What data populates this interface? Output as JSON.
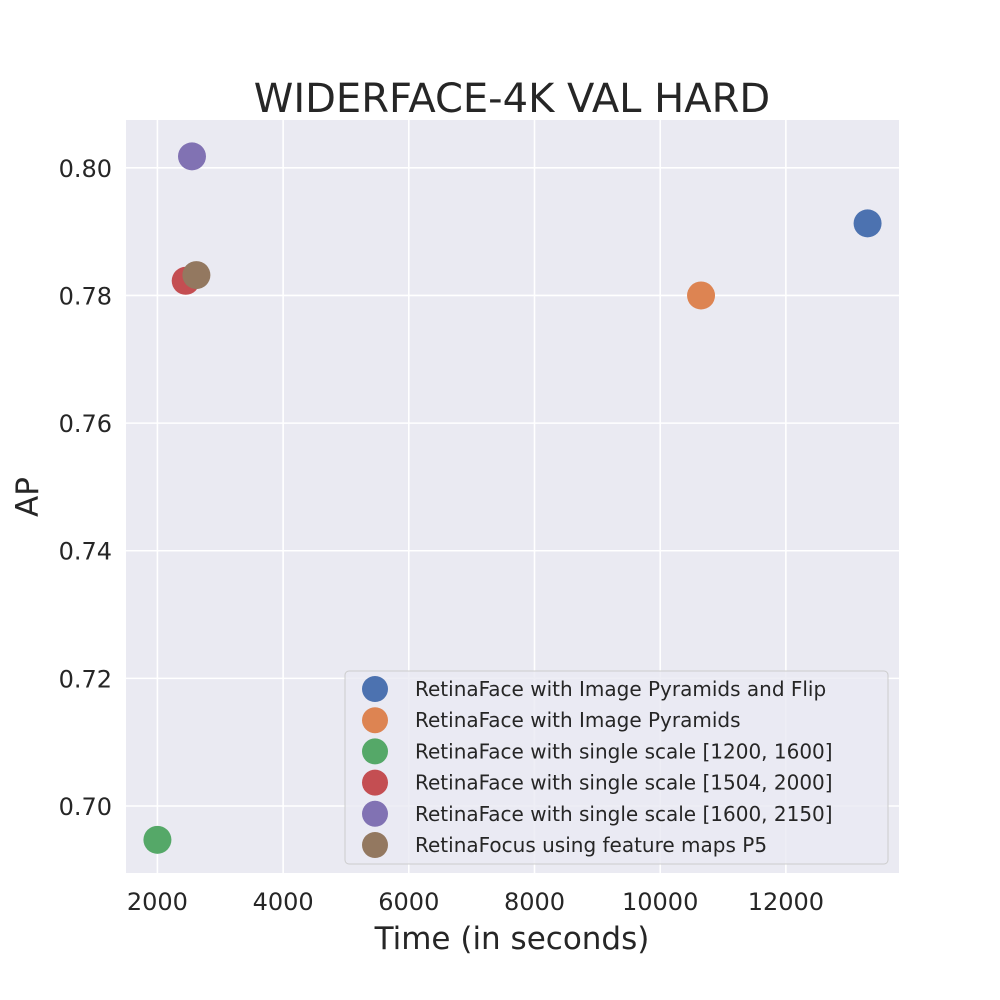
{
  "chart_data": {
    "type": "scatter",
    "title": "WIDERFACE-4K VAL HARD",
    "xlabel": "Time (in seconds)",
    "ylabel": "AP",
    "xlim": [
      1500,
      13800
    ],
    "ylim": [
      0.6895,
      0.8075
    ],
    "xticks": [
      2000,
      4000,
      6000,
      8000,
      10000,
      12000
    ],
    "yticks": [
      0.7,
      0.72,
      0.74,
      0.76,
      0.78,
      0.8
    ],
    "xtick_labels": [
      "2000",
      "4000",
      "6000",
      "8000",
      "10000",
      "12000"
    ],
    "ytick_labels": [
      "0.70",
      "0.72",
      "0.74",
      "0.76",
      "0.78",
      "0.80"
    ],
    "grid": true,
    "legend_position": "lower right",
    "background": "#eaeaf2",
    "series": [
      {
        "name": "RetinaFace with Image Pyramids and Flip",
        "color": "#4c72b0",
        "x": 13300,
        "y": 0.7913
      },
      {
        "name": "RetinaFace with Image Pyramids",
        "color": "#dd8452",
        "x": 10650,
        "y": 0.78
      },
      {
        "name": "RetinaFace with single scale [1200, 1600]",
        "color": "#55a868",
        "x": 2000,
        "y": 0.6947
      },
      {
        "name": "RetinaFace with single scale [1504, 2000]",
        "color": "#c44e52",
        "x": 2450,
        "y": 0.7823
      },
      {
        "name": "RetinaFace with single scale [1600, 2150]",
        "color": "#8172b3",
        "x": 2550,
        "y": 0.8018
      },
      {
        "name": "RetinaFocus using feature maps P5",
        "color": "#937860",
        "x": 2620,
        "y": 0.7832
      }
    ]
  }
}
